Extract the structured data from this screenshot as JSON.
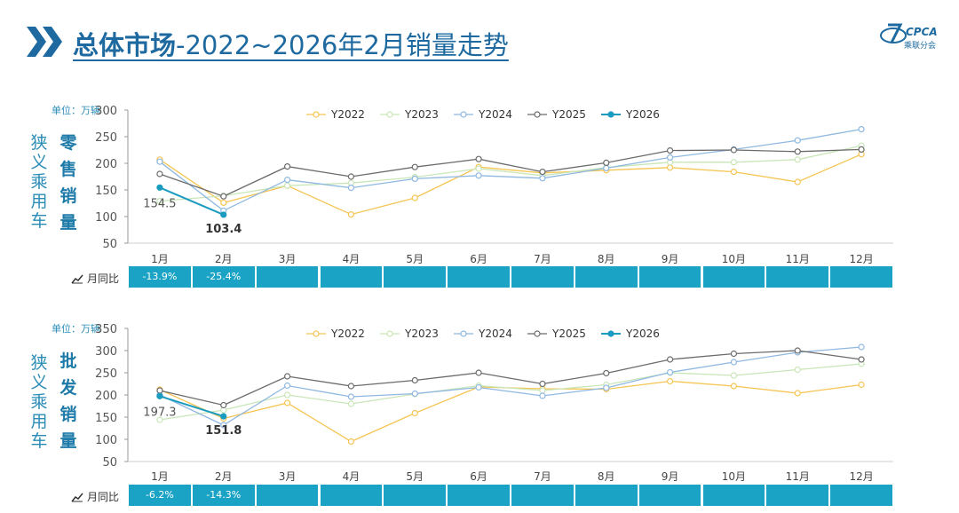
{
  "header": {
    "title_bold": "总体市场",
    "title_rest": "-2022~2026年2月销量走势",
    "logo_text": "CPCA",
    "logo_sub": "乘联分会"
  },
  "months": [
    "1月",
    "2月",
    "3月",
    "4月",
    "5月",
    "6月",
    "7月",
    "8月",
    "9月",
    "10月",
    "11月",
    "12月"
  ],
  "colors": {
    "Y2022": "#f5c553",
    "Y2023": "#c9e6b8",
    "Y2024": "#8fb8e0",
    "Y2025": "#6b6b6b",
    "Y2026": "#1a9bbf",
    "accent": "#1aa3c4"
  },
  "chart_data": [
    {
      "type": "line",
      "id": "retail",
      "side_label": "狭义乘用车",
      "side_label_bold": "零售销量",
      "unit_label": "单位：万辆",
      "ylim": [
        50,
        300
      ],
      "yticks": [
        50,
        100,
        150,
        200,
        250,
        300
      ],
      "categories": [
        "1月",
        "2月",
        "3月",
        "4月",
        "5月",
        "6月",
        "7月",
        "8月",
        "9月",
        "10月",
        "11月",
        "12月"
      ],
      "series": [
        {
          "name": "Y2022",
          "values": [
            207,
            126,
            158,
            104,
            135,
            193,
            182,
            187,
            192,
            184,
            165,
            217
          ]
        },
        {
          "name": "Y2023",
          "values": [
            129,
            139,
            158,
            163,
            174,
            190,
            177,
            192,
            202,
            202,
            207,
            233
          ]
        },
        {
          "name": "Y2024",
          "values": [
            203,
            111,
            169,
            154,
            171,
            177,
            172,
            191,
            211,
            226,
            243,
            264
          ]
        },
        {
          "name": "Y2025",
          "values": [
            180,
            138,
            194,
            175,
            193,
            208,
            184,
            201,
            224,
            225,
            222,
            226
          ]
        },
        {
          "name": "Y2026",
          "values": [
            154.5,
            103.4,
            null,
            null,
            null,
            null,
            null,
            null,
            null,
            null,
            null,
            null
          ]
        }
      ],
      "data_labels": [
        "154.5",
        "103.4"
      ],
      "yoy_label": "月同比",
      "yoy": [
        "-13.9%",
        "-25.4%",
        "",
        "",
        "",
        "",
        "",
        "",
        "",
        "",
        "",
        ""
      ]
    },
    {
      "type": "line",
      "id": "wholesale",
      "side_label": "狭义乘用车",
      "side_label_bold": "批发销量",
      "unit_label": "单位：万辆",
      "ylim": [
        50,
        350
      ],
      "yticks": [
        50,
        100,
        150,
        200,
        250,
        300,
        350
      ],
      "categories": [
        "1月",
        "2月",
        "3月",
        "4月",
        "5月",
        "6月",
        "7月",
        "8月",
        "9月",
        "10月",
        "11月",
        "12月"
      ],
      "series": [
        {
          "name": "Y2022",
          "values": [
            212,
            147,
            182,
            95,
            159,
            218,
            214,
            213,
            231,
            220,
            204,
            223
          ]
        },
        {
          "name": "Y2023",
          "values": [
            144,
            166,
            200,
            180,
            202,
            221,
            210,
            223,
            250,
            244,
            257,
            270
          ]
        },
        {
          "name": "Y2024",
          "values": [
            200,
            132,
            221,
            196,
            203,
            217,
            198,
            216,
            251,
            274,
            296,
            308
          ]
        },
        {
          "name": "Y2025",
          "values": [
            210,
            177,
            242,
            220,
            233,
            250,
            225,
            249,
            280,
            293,
            300,
            280
          ]
        },
        {
          "name": "Y2026",
          "values": [
            197.3,
            151.8,
            null,
            null,
            null,
            null,
            null,
            null,
            null,
            null,
            null,
            null
          ]
        }
      ],
      "data_labels": [
        "197.3",
        "151.8"
      ],
      "yoy_label": "月同比",
      "yoy": [
        "-6.2%",
        "-14.3%",
        "",
        "",
        "",
        "",
        "",
        "",
        "",
        "",
        "",
        ""
      ]
    }
  ]
}
